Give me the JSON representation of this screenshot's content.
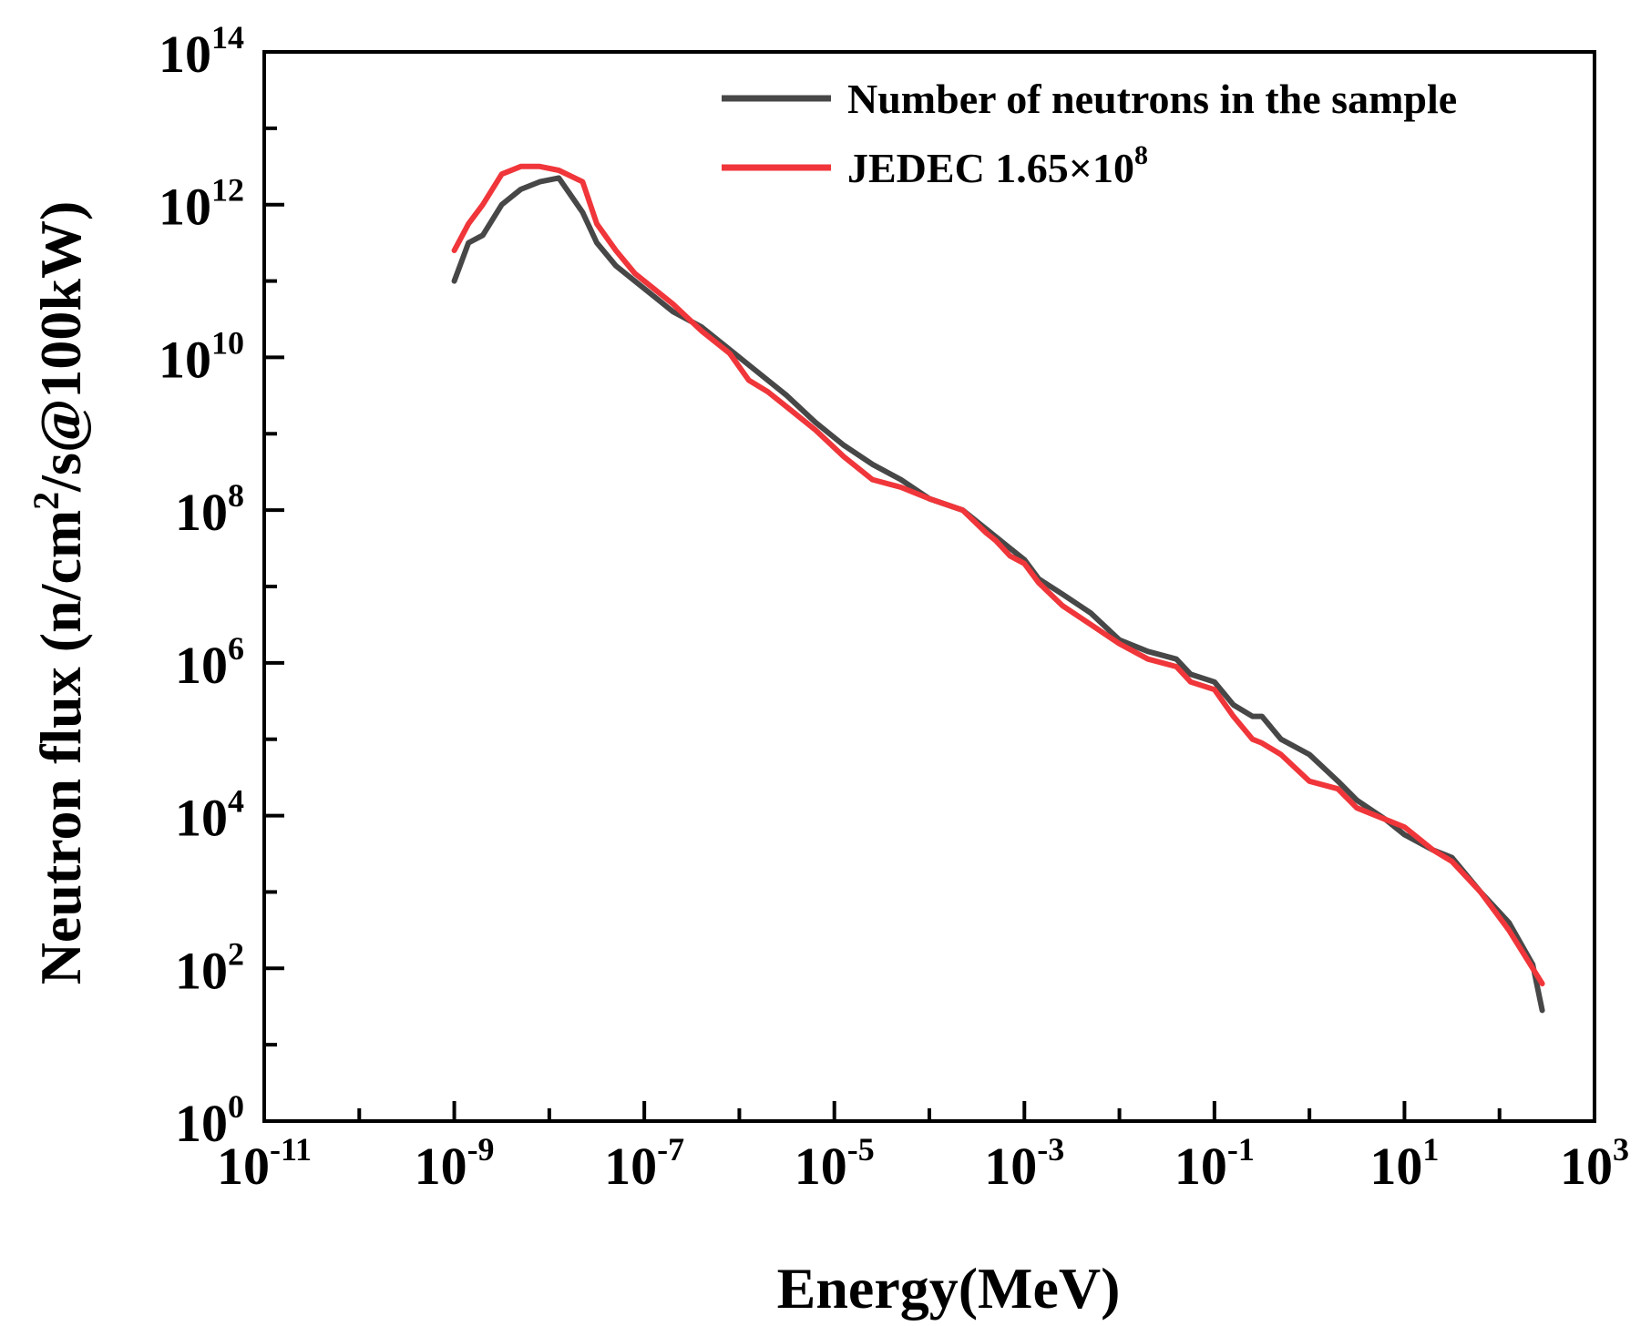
{
  "chart_data": {
    "type": "line",
    "xscale": "log",
    "yscale": "log",
    "xlabel": "Energy(MeV)",
    "ylabel": "Neutron flux (n/cm²/s@100kW)",
    "ylabel_parts": {
      "pre": "Neutron flux (n/cm",
      "sup": "2",
      "post": "/s@100kW)"
    },
    "xlim_exp": [
      -11,
      3
    ],
    "ylim_exp": [
      0,
      14
    ],
    "x_ticks": [
      {
        "base": "10",
        "exp": "-11"
      },
      {
        "base": "10",
        "exp": "-9"
      },
      {
        "base": "10",
        "exp": "-7"
      },
      {
        "base": "10",
        "exp": "-5"
      },
      {
        "base": "10",
        "exp": "-3"
      },
      {
        "base": "10",
        "exp": "-1"
      },
      {
        "base": "10",
        "exp": "1"
      },
      {
        "base": "10",
        "exp": "3"
      }
    ],
    "y_ticks": [
      {
        "base": "10",
        "exp": "0"
      },
      {
        "base": "10",
        "exp": "2"
      },
      {
        "base": "10",
        "exp": "4"
      },
      {
        "base": "10",
        "exp": "6"
      },
      {
        "base": "10",
        "exp": "8"
      },
      {
        "base": "10",
        "exp": "10"
      },
      {
        "base": "10",
        "exp": "12"
      },
      {
        "base": "10",
        "exp": "14"
      }
    ],
    "legend_position": "top-right",
    "series": [
      {
        "name": "Number of neutrons in the sample",
        "label_parts": {
          "pre": "Number of neutrons in the sample",
          "sup": "",
          "post": ""
        },
        "color": "#474747",
        "log_x": [
          -9,
          -8.85,
          -8.7,
          -8.5,
          -8.3,
          -8.1,
          -7.9,
          -7.65,
          -7.5,
          -7.3,
          -7.1,
          -6.9,
          -6.7,
          -6.4,
          -6.1,
          -5.9,
          -5.7,
          -5.5,
          -5.2,
          -4.9,
          -4.6,
          -4.3,
          -4.0,
          -3.65,
          -3.4,
          -3.3,
          -3.15,
          -3.0,
          -2.85,
          -2.6,
          -2.3,
          -2.0,
          -1.7,
          -1.4,
          -1.25,
          -1.0,
          -0.8,
          -0.6,
          -0.5,
          -0.3,
          0,
          0.3,
          0.5,
          0.8,
          1.0,
          1.3,
          1.5,
          1.8,
          2.1,
          2.35,
          2.45
        ],
        "log_y": [
          11.0,
          11.5,
          11.6,
          12.0,
          12.2,
          12.3,
          12.35,
          11.9,
          11.5,
          11.2,
          11.0,
          10.8,
          10.6,
          10.4,
          10.1,
          9.9,
          9.7,
          9.5,
          9.15,
          8.85,
          8.6,
          8.4,
          8.15,
          8.0,
          7.75,
          7.65,
          7.5,
          7.35,
          7.1,
          6.9,
          6.65,
          6.3,
          6.15,
          6.05,
          5.85,
          5.75,
          5.45,
          5.3,
          5.3,
          5.0,
          4.8,
          4.45,
          4.2,
          3.95,
          3.75,
          3.55,
          3.45,
          3.0,
          2.6,
          2.05,
          1.45
        ]
      },
      {
        "name": "JEDEC 1.65×10^8",
        "label_parts": {
          "pre": "JEDEC 1.65×10",
          "sup": "8",
          "post": ""
        },
        "color": "#f0363a",
        "log_x": [
          -9,
          -8.85,
          -8.7,
          -8.5,
          -8.3,
          -8.1,
          -7.9,
          -7.65,
          -7.5,
          -7.3,
          -7.1,
          -6.9,
          -6.7,
          -6.4,
          -6.1,
          -5.9,
          -5.7,
          -5.5,
          -5.2,
          -4.9,
          -4.6,
          -4.3,
          -4.0,
          -3.65,
          -3.4,
          -3.3,
          -3.15,
          -3.0,
          -2.85,
          -2.6,
          -2.3,
          -2.0,
          -1.7,
          -1.4,
          -1.25,
          -1.0,
          -0.8,
          -0.6,
          -0.5,
          -0.3,
          0,
          0.3,
          0.5,
          0.8,
          1.0,
          1.3,
          1.5,
          1.8,
          2.1,
          2.35,
          2.45
        ],
        "log_y": [
          11.4,
          11.75,
          12.0,
          12.4,
          12.5,
          12.5,
          12.45,
          12.3,
          11.75,
          11.4,
          11.1,
          10.9,
          10.7,
          10.35,
          10.05,
          9.7,
          9.55,
          9.35,
          9.05,
          8.7,
          8.4,
          8.3,
          8.15,
          8.0,
          7.7,
          7.6,
          7.4,
          7.3,
          7.05,
          6.75,
          6.5,
          6.25,
          6.05,
          5.95,
          5.75,
          5.65,
          5.3,
          5.0,
          4.95,
          4.8,
          4.45,
          4.35,
          4.1,
          3.95,
          3.85,
          3.55,
          3.4,
          3.0,
          2.5,
          2.0,
          1.8
        ]
      }
    ]
  }
}
